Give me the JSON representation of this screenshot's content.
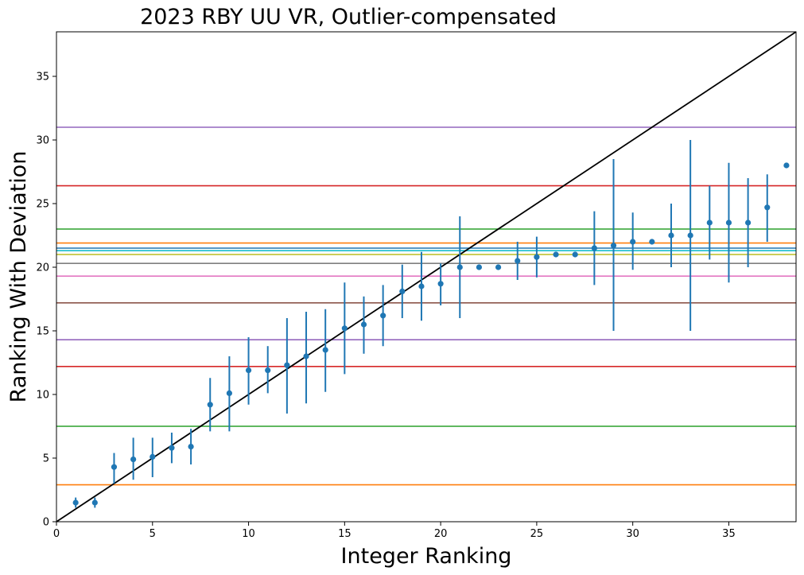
{
  "chart_data": {
    "type": "scatter",
    "title": "2023 RBY UU VR, Outlier-compensated",
    "xlabel": "Integer Ranking",
    "ylabel": "Ranking With Deviation",
    "xlim": [
      0,
      38.5
    ],
    "ylim": [
      0,
      38.5
    ],
    "xticks": [
      "0",
      "5",
      "10",
      "15",
      "20",
      "25",
      "30",
      "35"
    ],
    "yticks": [
      "0",
      "5",
      "10",
      "15",
      "20",
      "25",
      "30",
      "35"
    ],
    "grid": false,
    "legend": "none",
    "marker_color": "#1f77b4",
    "identity_line": {
      "from": [
        0,
        0
      ],
      "to": [
        38.5,
        38.5
      ],
      "color": "#000000"
    },
    "points": [
      {
        "x": 1,
        "y": 1.5,
        "ylo": 1.1,
        "yhi": 1.9
      },
      {
        "x": 2,
        "y": 1.5,
        "ylo": 1.1,
        "yhi": 1.9
      },
      {
        "x": 3,
        "y": 4.3,
        "ylo": 3.0,
        "yhi": 5.4
      },
      {
        "x": 4,
        "y": 4.9,
        "ylo": 3.3,
        "yhi": 6.6
      },
      {
        "x": 5,
        "y": 5.1,
        "ylo": 3.5,
        "yhi": 6.6
      },
      {
        "x": 6,
        "y": 5.8,
        "ylo": 4.6,
        "yhi": 7.0
      },
      {
        "x": 7,
        "y": 5.9,
        "ylo": 4.5,
        "yhi": 7.3
      },
      {
        "x": 8,
        "y": 9.2,
        "ylo": 7.1,
        "yhi": 11.3
      },
      {
        "x": 9,
        "y": 10.1,
        "ylo": 7.1,
        "yhi": 13.0
      },
      {
        "x": 10,
        "y": 11.9,
        "ylo": 9.2,
        "yhi": 14.5
      },
      {
        "x": 11,
        "y": 11.9,
        "ylo": 10.1,
        "yhi": 13.8
      },
      {
        "x": 12,
        "y": 12.3,
        "ylo": 8.5,
        "yhi": 16.0
      },
      {
        "x": 13,
        "y": 13.0,
        "ylo": 9.3,
        "yhi": 16.5
      },
      {
        "x": 14,
        "y": 13.5,
        "ylo": 10.2,
        "yhi": 16.7
      },
      {
        "x": 15,
        "y": 15.2,
        "ylo": 11.6,
        "yhi": 18.8
      },
      {
        "x": 16,
        "y": 15.5,
        "ylo": 13.2,
        "yhi": 17.7
      },
      {
        "x": 17,
        "y": 16.2,
        "ylo": 13.8,
        "yhi": 18.6
      },
      {
        "x": 18,
        "y": 18.1,
        "ylo": 16.0,
        "yhi": 20.2
      },
      {
        "x": 19,
        "y": 18.5,
        "ylo": 15.8,
        "yhi": 21.2
      },
      {
        "x": 20,
        "y": 18.7,
        "ylo": 17.0,
        "yhi": 20.3
      },
      {
        "x": 21,
        "y": 20.0,
        "ylo": 16.0,
        "yhi": 24.0
      },
      {
        "x": 22,
        "y": 20.0,
        "ylo": 20.0,
        "yhi": 20.0
      },
      {
        "x": 23,
        "y": 20.0,
        "ylo": 20.0,
        "yhi": 20.0
      },
      {
        "x": 24,
        "y": 20.5,
        "ylo": 19.0,
        "yhi": 22.0
      },
      {
        "x": 25,
        "y": 20.8,
        "ylo": 19.2,
        "yhi": 22.4
      },
      {
        "x": 26,
        "y": 21.0,
        "ylo": 21.0,
        "yhi": 21.0
      },
      {
        "x": 27,
        "y": 21.0,
        "ylo": 21.0,
        "yhi": 21.0
      },
      {
        "x": 28,
        "y": 21.5,
        "ylo": 18.6,
        "yhi": 24.4
      },
      {
        "x": 29,
        "y": 21.7,
        "ylo": 15.0,
        "yhi": 28.5
      },
      {
        "x": 30,
        "y": 22.0,
        "ylo": 19.8,
        "yhi": 24.3
      },
      {
        "x": 31,
        "y": 22.0,
        "ylo": 22.0,
        "yhi": 22.0
      },
      {
        "x": 32,
        "y": 22.5,
        "ylo": 20.0,
        "yhi": 25.0
      },
      {
        "x": 33,
        "y": 22.5,
        "ylo": 15.0,
        "yhi": 30.0
      },
      {
        "x": 34,
        "y": 23.5,
        "ylo": 20.6,
        "yhi": 26.4
      },
      {
        "x": 35,
        "y": 23.5,
        "ylo": 18.8,
        "yhi": 28.2
      },
      {
        "x": 36,
        "y": 23.5,
        "ylo": 20.0,
        "yhi": 27.0
      },
      {
        "x": 37,
        "y": 24.7,
        "ylo": 22.0,
        "yhi": 27.3
      },
      {
        "x": 38,
        "y": 28.0,
        "ylo": 28.0,
        "yhi": 28.0
      }
    ],
    "hlines": [
      {
        "y": 2.9,
        "color": "#ff7f0e"
      },
      {
        "y": 7.5,
        "color": "#2ca02c"
      },
      {
        "y": 12.2,
        "color": "#d62728"
      },
      {
        "y": 14.3,
        "color": "#9467bd"
      },
      {
        "y": 17.2,
        "color": "#8c564b"
      },
      {
        "y": 19.3,
        "color": "#e377c2"
      },
      {
        "y": 20.3,
        "color": "#7f7f7f"
      },
      {
        "y": 21.0,
        "color": "#bcbd22"
      },
      {
        "y": 21.3,
        "color": "#17becf"
      },
      {
        "y": 21.5,
        "color": "#1f77b4"
      },
      {
        "y": 21.9,
        "color": "#ff7f0e"
      },
      {
        "y": 23.0,
        "color": "#2ca02c"
      },
      {
        "y": 26.4,
        "color": "#d62728"
      },
      {
        "y": 31.0,
        "color": "#9467bd"
      }
    ]
  }
}
